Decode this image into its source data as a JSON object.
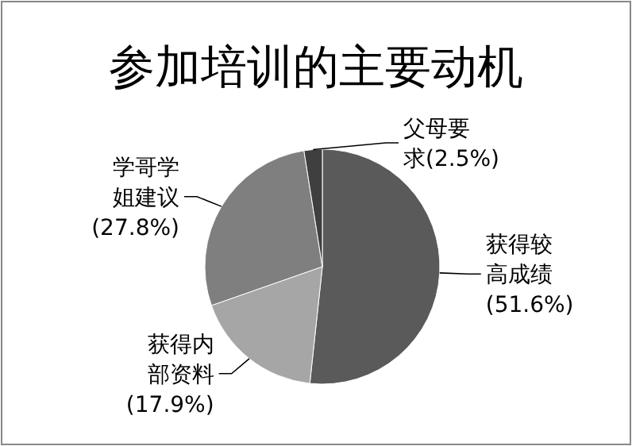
{
  "chart_data": {
    "type": "pie",
    "title": "参加培训的主要动机",
    "categories": [
      "获得较高成绩",
      "获得内部资料",
      "学哥学姐建议",
      "父母要求"
    ],
    "values": [
      51.6,
      17.9,
      27.8,
      2.5
    ],
    "colors": [
      "#5a5a5a",
      "#a6a6a6",
      "#7f7f7f",
      "#3f3f3f"
    ],
    "value_labels": [
      "(51.6%)",
      "(17.9%)",
      "(27.8%)",
      "(2.5%)"
    ]
  }
}
